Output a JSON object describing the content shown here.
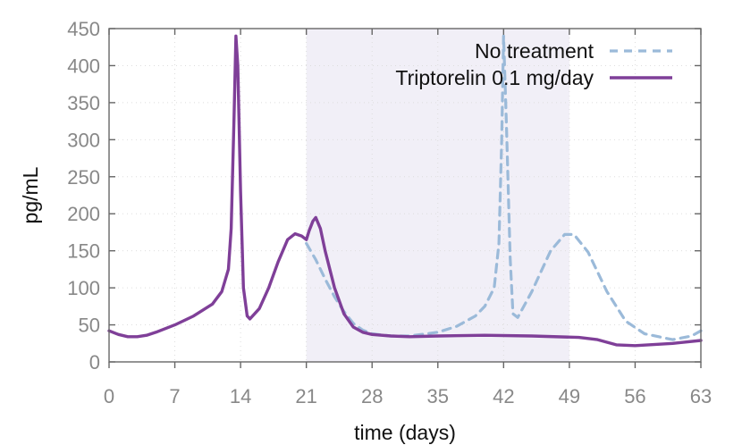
{
  "chart_data": {
    "type": "line",
    "title": "",
    "xlabel": "time (days)",
    "ylabel": "pg/mL",
    "xlim": [
      0,
      63
    ],
    "ylim": [
      0,
      450
    ],
    "xticks": [
      0,
      7,
      14,
      21,
      28,
      35,
      42,
      49,
      56,
      63
    ],
    "yticks": [
      0,
      50,
      100,
      150,
      200,
      250,
      300,
      350,
      400,
      450
    ],
    "grid": true,
    "legend_position": "top-right",
    "treatment_window": [
      21,
      49
    ],
    "series": [
      {
        "name": "No treatment",
        "style": "dashed",
        "color": "#9bbad9",
        "points": [
          [
            21,
            160
          ],
          [
            22,
            138
          ],
          [
            23,
            112
          ],
          [
            24,
            88
          ],
          [
            25,
            68
          ],
          [
            26,
            52
          ],
          [
            27,
            43
          ],
          [
            28,
            38
          ],
          [
            30,
            35
          ],
          [
            32,
            35
          ],
          [
            35,
            40
          ],
          [
            37,
            48
          ],
          [
            39,
            62
          ],
          [
            40,
            75
          ],
          [
            41,
            100
          ],
          [
            41.5,
            160
          ],
          [
            41.8,
            300
          ],
          [
            42.0,
            440
          ],
          [
            42.3,
            320
          ],
          [
            42.7,
            140
          ],
          [
            43.0,
            65
          ],
          [
            43.5,
            60
          ],
          [
            45,
            95
          ],
          [
            47,
            150
          ],
          [
            48.5,
            172
          ],
          [
            49.5,
            172
          ],
          [
            51,
            148
          ],
          [
            53,
            95
          ],
          [
            55,
            55
          ],
          [
            57,
            38
          ],
          [
            60,
            30
          ],
          [
            62,
            35
          ],
          [
            63,
            42
          ]
        ]
      },
      {
        "name": "Triptorelin 0.1 mg/day",
        "style": "solid",
        "color": "#7f3f98",
        "points": [
          [
            0,
            42
          ],
          [
            1,
            37
          ],
          [
            2,
            34
          ],
          [
            3,
            34
          ],
          [
            4,
            36
          ],
          [
            5,
            40
          ],
          [
            7,
            50
          ],
          [
            9,
            62
          ],
          [
            11,
            78
          ],
          [
            12,
            95
          ],
          [
            12.7,
            125
          ],
          [
            13.0,
            180
          ],
          [
            13.3,
            330
          ],
          [
            13.5,
            440
          ],
          [
            13.7,
            400
          ],
          [
            14.0,
            230
          ],
          [
            14.3,
            100
          ],
          [
            14.7,
            62
          ],
          [
            15,
            58
          ],
          [
            16,
            72
          ],
          [
            17,
            100
          ],
          [
            18,
            135
          ],
          [
            19,
            165
          ],
          [
            19.8,
            173
          ],
          [
            20.5,
            170
          ],
          [
            21,
            165
          ],
          [
            21.3,
            177
          ],
          [
            21.7,
            190
          ],
          [
            22.0,
            195
          ],
          [
            22.5,
            180
          ],
          [
            23,
            150
          ],
          [
            24,
            100
          ],
          [
            25,
            65
          ],
          [
            26,
            47
          ],
          [
            27,
            40
          ],
          [
            28,
            37
          ],
          [
            30,
            35
          ],
          [
            32,
            34
          ],
          [
            35,
            35
          ],
          [
            40,
            36
          ],
          [
            45,
            35
          ],
          [
            50,
            33
          ],
          [
            52,
            30
          ],
          [
            54,
            23
          ],
          [
            56,
            22
          ],
          [
            60,
            25
          ],
          [
            63,
            29
          ]
        ]
      }
    ]
  },
  "colors": {
    "treatment_band": "#f1eff7",
    "grid": "#dddddd",
    "axis": "#666666"
  }
}
